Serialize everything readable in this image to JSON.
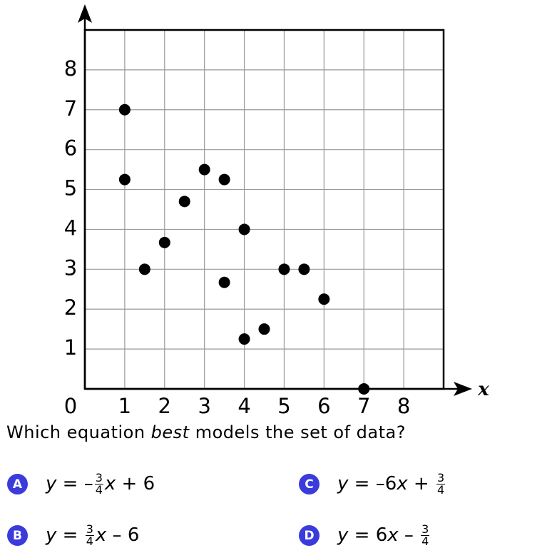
{
  "chart_data": {
    "type": "scatter",
    "x_label": "x",
    "x": [
      1,
      1,
      1.5,
      2,
      2.5,
      3,
      3.5,
      3.5,
      4,
      4,
      4.5,
      5,
      5.5,
      6,
      7
    ],
    "values": [
      7,
      5.25,
      3,
      3.67,
      4.7,
      5.5,
      5.25,
      2.67,
      4,
      1.25,
      1.5,
      3,
      3,
      2.25,
      0
    ],
    "color": "#000000",
    "xlim": [
      0,
      9
    ],
    "ylim": [
      0,
      9
    ],
    "xticks": [
      0,
      1,
      2,
      3,
      4,
      5,
      6,
      7,
      8
    ],
    "yticks": [
      1,
      2,
      3,
      4,
      5,
      6,
      7,
      8
    ],
    "grid": true
  },
  "question": [
    "Which equation ",
    "best",
    " models the set of data?"
  ],
  "options": [
    {
      "letter": "A",
      "expression": [
        "y",
        " = –",
        {
          "num": "3",
          "den": "4"
        },
        "x",
        " + 6"
      ]
    },
    {
      "letter": "B",
      "expression": [
        "y",
        " = ",
        {
          "num": "3",
          "den": "4"
        },
        "x",
        " – 6"
      ]
    },
    {
      "letter": "C",
      "expression": [
        "y",
        " = –6",
        "x",
        " + ",
        {
          "num": "3",
          "den": "4"
        }
      ]
    },
    {
      "letter": "D",
      "expression": [
        "y",
        " = 6",
        "x",
        " – ",
        {
          "num": "3",
          "den": "4"
        }
      ]
    }
  ]
}
